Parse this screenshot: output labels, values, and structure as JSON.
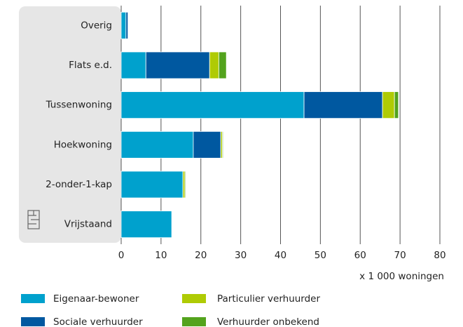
{
  "chart_data": {
    "type": "stacked-barh",
    "categories": [
      "Overig",
      "Flats e.d.",
      "Tussenwoning",
      "Hoekwoning",
      "2-onder-1-kap",
      "Vrijstaand"
    ],
    "series": [
      {
        "name": "Eigenaar-bewoner",
        "color": "#00a1cd",
        "values": [
          1.2,
          6.2,
          45.9,
          18.1,
          15.5,
          12.7
        ]
      },
      {
        "name": "Sociale verhuurder",
        "color": "#0058a0",
        "values": [
          0.5,
          16.0,
          19.7,
          6.9,
          0,
          0
        ]
      },
      {
        "name": "Particulier verhuurder",
        "color": "#afcb05",
        "values": [
          0,
          2.3,
          3.0,
          0.4,
          0.5,
          0.1
        ]
      },
      {
        "name": "Verhuurder onbekend",
        "color": "#53a31d",
        "values": [
          0,
          1.9,
          1.0,
          0.2,
          0.2,
          0.1
        ]
      }
    ],
    "xlim": [
      0,
      80
    ],
    "xticks": [
      0,
      10,
      20,
      30,
      40,
      50,
      60,
      70,
      80
    ],
    "xlabel": "x 1 000 woningen",
    "grid": true
  }
}
